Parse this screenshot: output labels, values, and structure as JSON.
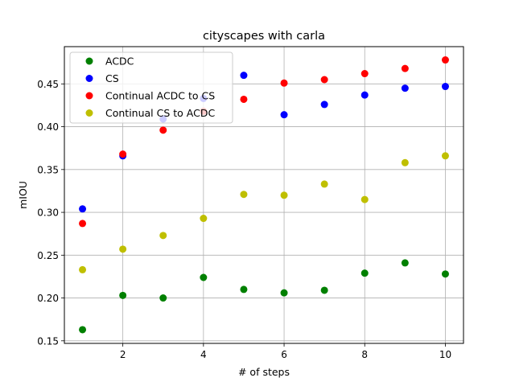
{
  "chart_data": {
    "type": "scatter",
    "title": "cityscapes with carla",
    "xlabel": "# of steps",
    "ylabel": "mIOU",
    "xlim": [
      0.55,
      10.45
    ],
    "ylim": [
      0.147,
      0.4935
    ],
    "xticks": [
      2,
      4,
      6,
      8,
      10
    ],
    "yticks": [
      0.15,
      0.2,
      0.25,
      0.3,
      0.35,
      0.4,
      0.45
    ],
    "ytick_labels": [
      "0.15",
      "0.20",
      "0.25",
      "0.30",
      "0.35",
      "0.40",
      "0.45"
    ],
    "grid": true,
    "legend_position": "top-left",
    "x": [
      1,
      2,
      3,
      4,
      5,
      6,
      7,
      8,
      9,
      10
    ],
    "series": [
      {
        "name": "ACDC",
        "color": "#008000",
        "values": [
          0.163,
          0.203,
          0.2,
          0.224,
          0.21,
          0.206,
          0.209,
          0.229,
          0.241,
          0.228
        ]
      },
      {
        "name": "CS",
        "color": "#0000ff",
        "values": [
          0.304,
          0.366,
          0.409,
          0.433,
          0.46,
          0.414,
          0.426,
          0.437,
          0.445,
          0.447
        ]
      },
      {
        "name": "Continual ACDC to CS",
        "color": "#ff0000",
        "values": [
          0.287,
          0.368,
          0.396,
          0.418,
          0.432,
          0.451,
          0.455,
          0.462,
          0.468,
          0.478
        ]
      },
      {
        "name": "Continual CS to ACDC",
        "color": "#bfbf00",
        "values": [
          0.233,
          0.257,
          0.273,
          0.293,
          0.321,
          0.32,
          0.333,
          0.315,
          0.358,
          0.366
        ]
      }
    ]
  }
}
